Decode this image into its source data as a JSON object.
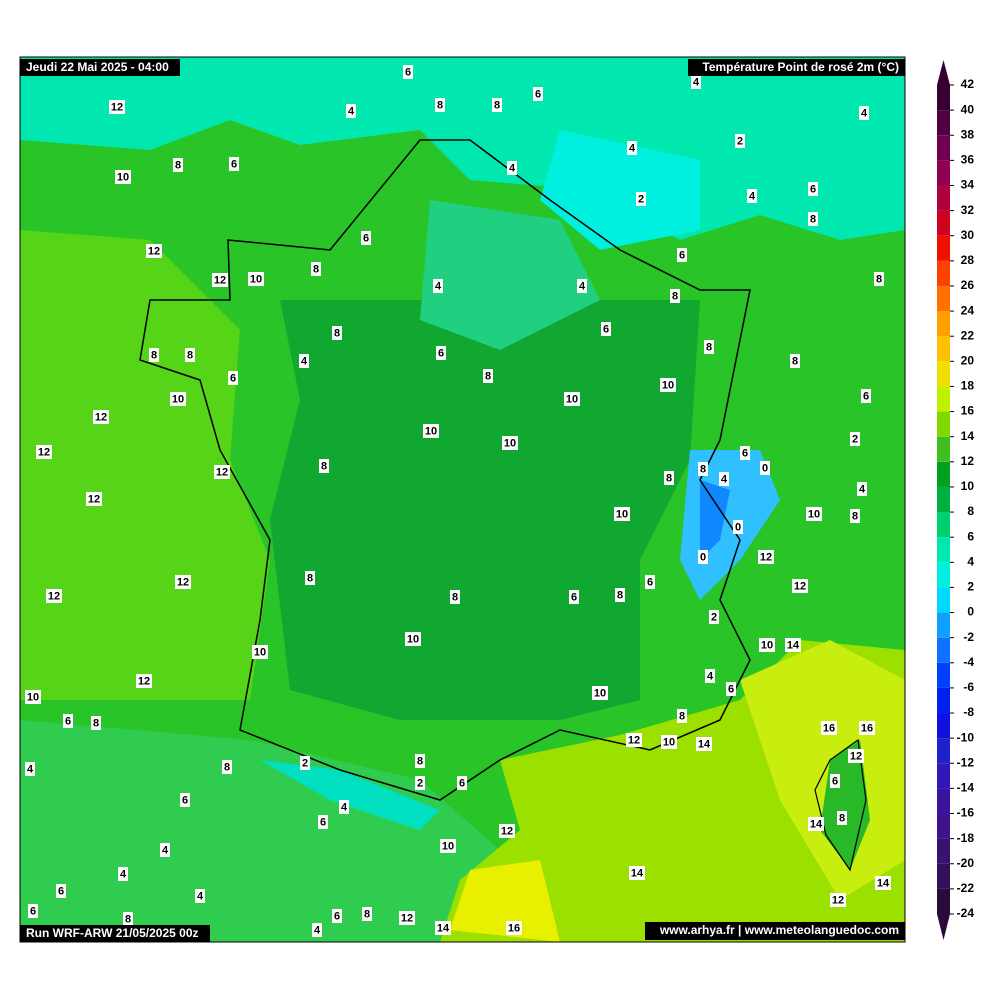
{
  "header": {
    "date": "Jeudi 22 Mai 2025 - 04:00",
    "title": "Température Point de rosé 2m (°C)"
  },
  "footer": {
    "run": "Run WRF-ARW 21/05/2025 00z",
    "credits": "www.arhya.fr | www.meteolanguedoc.com"
  },
  "colorbar": {
    "ticks": [
      -24,
      -22,
      -20,
      -18,
      -16,
      -14,
      -12,
      -10,
      -8,
      -6,
      -4,
      -2,
      0,
      2,
      4,
      6,
      8,
      10,
      12,
      14,
      16,
      18,
      20,
      22,
      24,
      26,
      28,
      30,
      32,
      34,
      36,
      38,
      40,
      42
    ],
    "colors": [
      "#2a0a3a",
      "#33105a",
      "#3a1070",
      "#40128a",
      "#3a14a0",
      "#3018b8",
      "#2020c8",
      "#1010e0",
      "#0020f0",
      "#0040ff",
      "#1070ff",
      "#10a0ff",
      "#00d8ff",
      "#00f0e0",
      "#00e8b0",
      "#00d070",
      "#00b040",
      "#00a020",
      "#40c020",
      "#80d800",
      "#c0f000",
      "#f0e000",
      "#ffc000",
      "#ffa000",
      "#ff7000",
      "#ff4000",
      "#f01000",
      "#d00020",
      "#b00040",
      "#900050",
      "#700050",
      "#500040",
      "#380030"
    ]
  },
  "map_labels": [
    12,
    4,
    6,
    8,
    8,
    6,
    4,
    4,
    4,
    2,
    8,
    6,
    10,
    4,
    2,
    4,
    6,
    8,
    6,
    12,
    12,
    10,
    8,
    6,
    8,
    4,
    4,
    8,
    8,
    6,
    8,
    8,
    4,
    6,
    8,
    6,
    8,
    8,
    10,
    10,
    10,
    12,
    6,
    10,
    10,
    2,
    12,
    6,
    0,
    8,
    8,
    4,
    8,
    12,
    4,
    12,
    10,
    10,
    8,
    0,
    0,
    12,
    8,
    12,
    6,
    12,
    12,
    8,
    6,
    8,
    2,
    10,
    10,
    14,
    10,
    4,
    12,
    6,
    10,
    10,
    6,
    8,
    8,
    16,
    16,
    12,
    10,
    14,
    12,
    2,
    8,
    8,
    4,
    2,
    6,
    6,
    6,
    4,
    6,
    12,
    8,
    14,
    4,
    10,
    14,
    4,
    14,
    6,
    4,
    12,
    6,
    8,
    8,
    6,
    12,
    14,
    16,
    4
  ]
}
